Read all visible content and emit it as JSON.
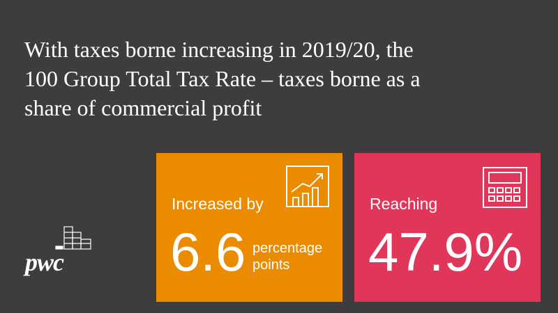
{
  "header": {
    "title_lines": [
      "With taxes borne increasing in 2019/20, the",
      "100 Group Total Tax Rate – taxes borne as a",
      "share of commercial profit"
    ]
  },
  "cards": [
    {
      "label": "Increased by",
      "value": "6.6",
      "unit_lines": [
        "percentage",
        "points"
      ]
    },
    {
      "label": "Reaching",
      "value": "47.9%"
    }
  ],
  "logo": {
    "text": "pwc"
  }
}
